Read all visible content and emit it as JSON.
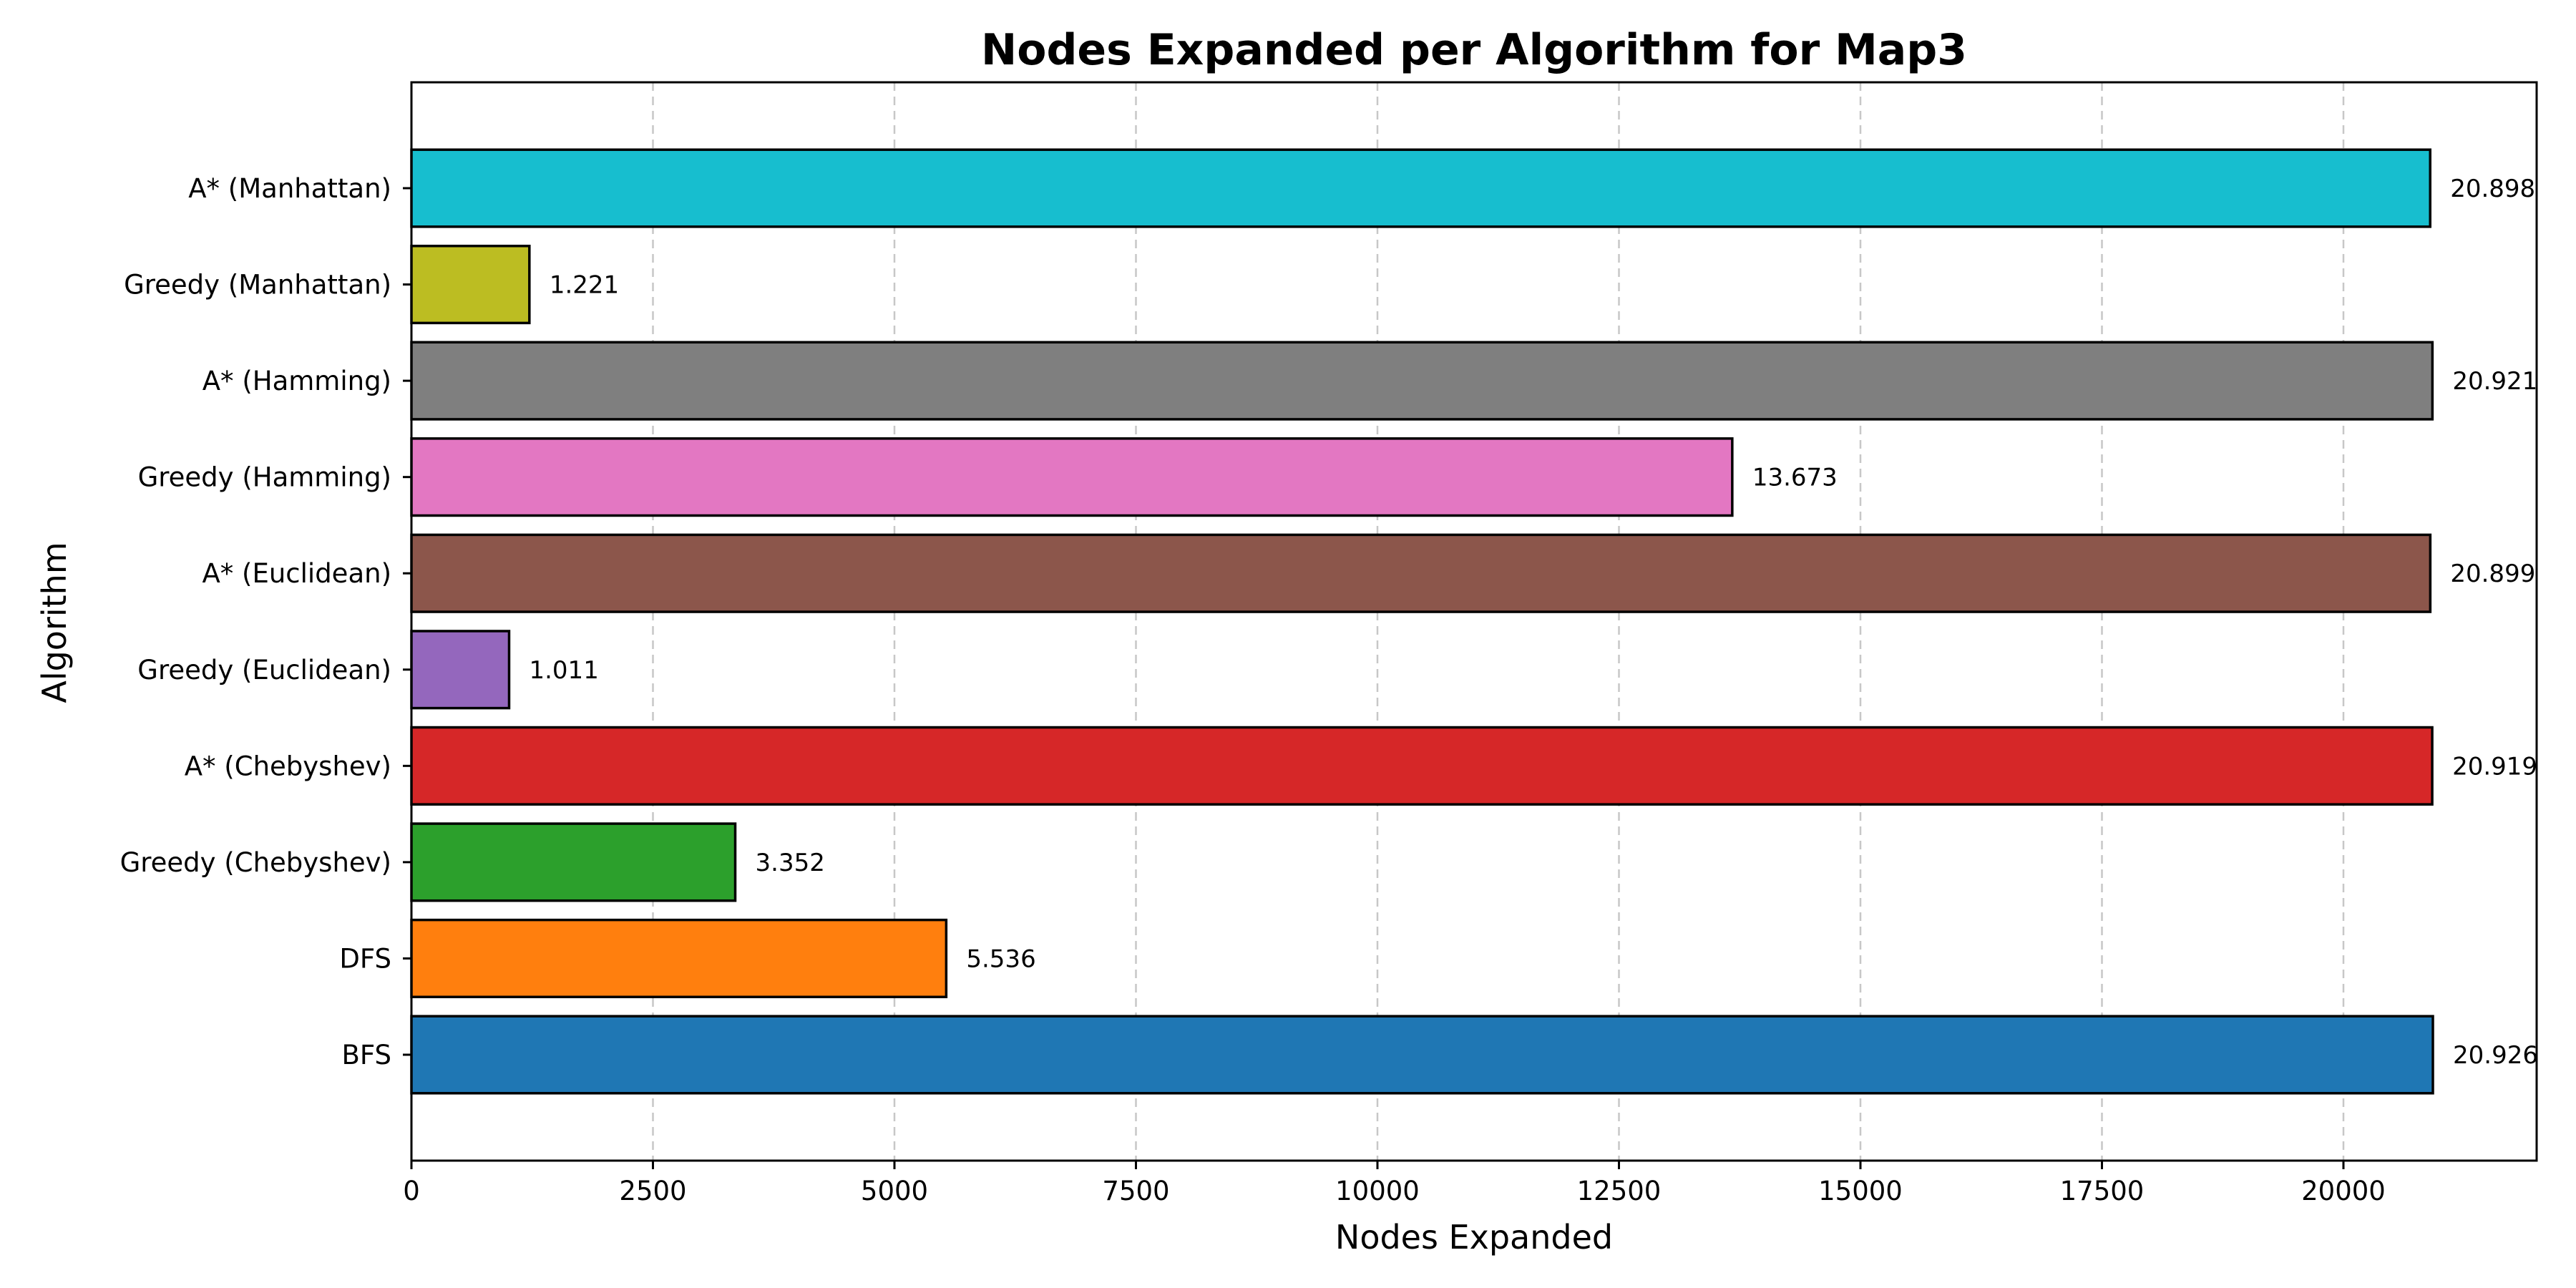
{
  "chart_data": {
    "type": "bar",
    "orientation": "horizontal",
    "title": "Nodes Expanded per Algorithm for Map3",
    "xlabel": "Nodes Expanded",
    "ylabel": "Algorithm",
    "xlim": [
      0,
      22000
    ],
    "xticks": [
      0,
      2500,
      5000,
      7500,
      10000,
      12500,
      15000,
      17500,
      20000
    ],
    "xtick_labels": [
      "0",
      "2500",
      "5000",
      "7500",
      "10000",
      "12500",
      "15000",
      "17500",
      "20000"
    ],
    "grid": "x-dashed",
    "categories": [
      "BFS",
      "DFS",
      "Greedy (Chebyshev)",
      "A* (Chebyshev)",
      "Greedy (Euclidean)",
      "A* (Euclidean)",
      "Greedy (Hamming)",
      "A* (Hamming)",
      "Greedy (Manhattan)",
      "A* (Manhattan)"
    ],
    "values": [
      20926,
      5536,
      3352,
      20919,
      1011,
      20899,
      13673,
      20921,
      1221,
      20898
    ],
    "value_labels": [
      "20.926",
      "5.536",
      "3.352",
      "20.919",
      "1.011",
      "20.899",
      "13.673",
      "20.921",
      "1.221",
      "20.898"
    ],
    "colors": [
      "#1f77b4",
      "#ff7f0e",
      "#2ca02c",
      "#d62728",
      "#9467bd",
      "#8c564b",
      "#e377c2",
      "#7f7f7f",
      "#bcbd22",
      "#17becf"
    ]
  }
}
